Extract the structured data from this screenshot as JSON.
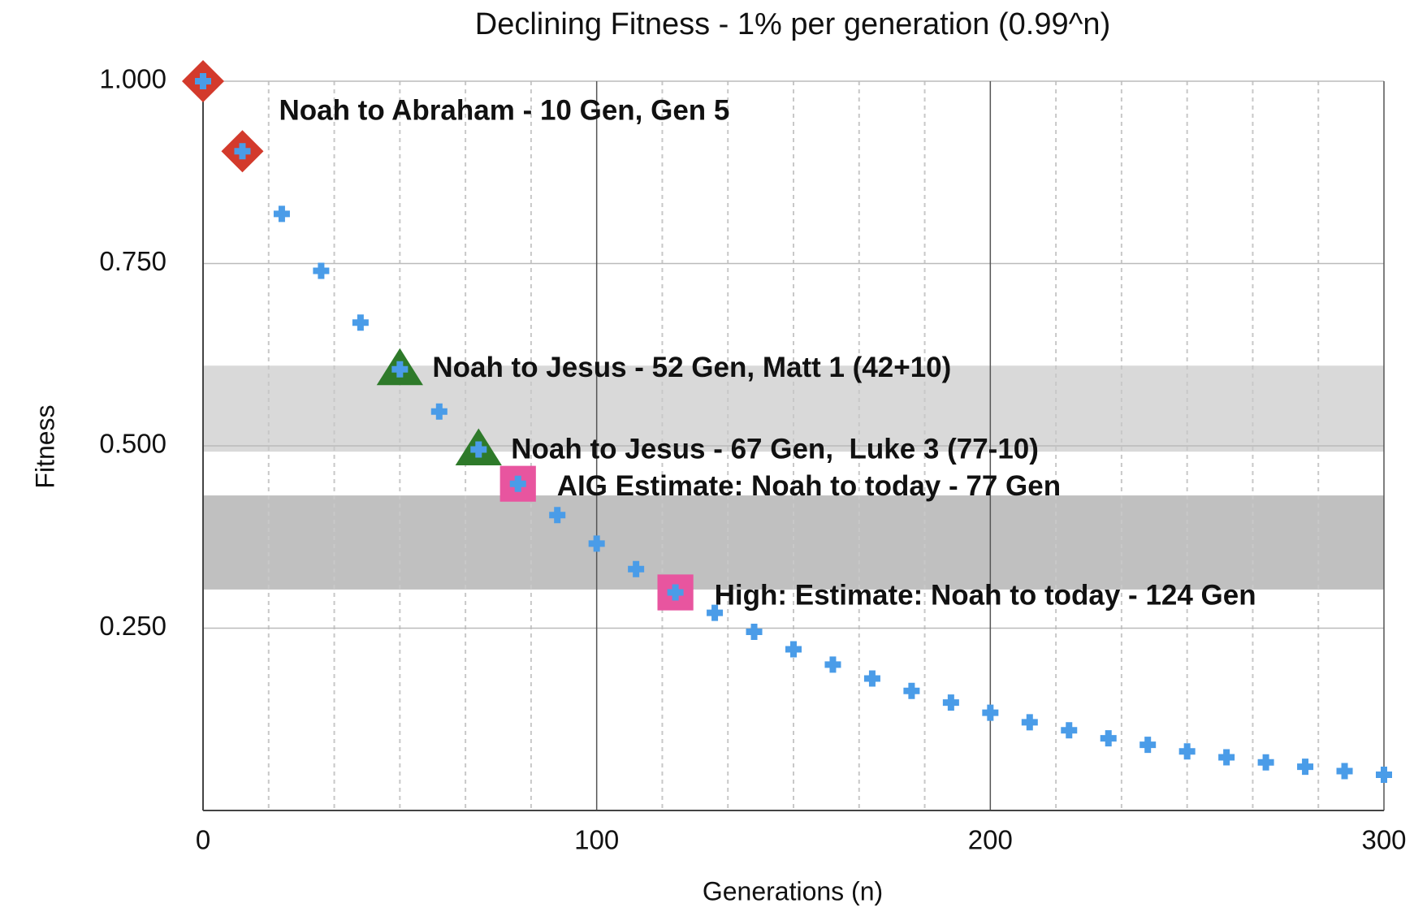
{
  "chart_data": {
    "type": "scatter",
    "title": "Declining Fitness - 1% per generation (0.99^n)",
    "xlabel": "Generations (n)",
    "ylabel": "Fitness",
    "x": [
      0,
      10,
      20,
      30,
      40,
      50,
      60,
      70,
      80,
      90,
      100,
      110,
      120,
      130,
      140,
      150,
      160,
      170,
      180,
      190,
      200,
      210,
      220,
      230,
      240,
      250,
      260,
      270,
      280,
      290,
      300
    ],
    "values": [
      1.0,
      0.904,
      0.818,
      0.74,
      0.669,
      0.605,
      0.547,
      0.495,
      0.448,
      0.405,
      0.366,
      0.331,
      0.299,
      0.271,
      0.245,
      0.221,
      0.2,
      0.181,
      0.164,
      0.148,
      0.134,
      0.121,
      0.11,
      0.099,
      0.09,
      0.081,
      0.073,
      0.066,
      0.06,
      0.054,
      0.049
    ],
    "color": "#4a9ce8",
    "xlim": [
      0,
      300
    ],
    "ylim": [
      0,
      1
    ],
    "xticks": [
      0,
      100,
      200,
      300
    ],
    "yticks": [
      {
        "value": 0.25,
        "label": "0.250"
      },
      {
        "value": 0.5,
        "label": "0.500"
      },
      {
        "value": 0.75,
        "label": "0.750"
      },
      {
        "value": 1,
        "label": "1.000"
      }
    ],
    "grid": true,
    "bands": [
      {
        "ylim": [
          0.492,
          0.61
        ],
        "color": "#d9d9d9"
      },
      {
        "ylim": [
          0.303,
          0.432
        ],
        "color": "#c0c0c0"
      }
    ],
    "highlights": [
      {
        "x": 0,
        "y": 1.0,
        "marker": "diamond",
        "color": "#d33a2c"
      },
      {
        "x": 10,
        "y": 0.904,
        "marker": "diamond",
        "color": "#d33a2c"
      },
      {
        "x": 50,
        "y": 0.605,
        "marker": "triangle",
        "color": "#2e7a2a"
      },
      {
        "x": 70,
        "y": 0.495,
        "marker": "triangle",
        "color": "#2e7a2a"
      },
      {
        "x": 80,
        "y": 0.448,
        "marker": "square",
        "color": "#e8559f"
      },
      {
        "x": 120,
        "y": 0.299,
        "marker": "square",
        "color": "#e8559f"
      }
    ],
    "annotations": [
      {
        "text": "Noah to Abraham - 10 Gen, Gen 5",
        "color": "#d33a2c"
      },
      {
        "text": "Noah to Jesus - 52 Gen, Matt 1 (42+10)",
        "color": "#2e7a2a"
      },
      {
        "text": "Noah to Jesus - 67 Gen,  Luke 3 (77-10)",
        "color": "#2e7a2a"
      },
      {
        "text": "AIG Estimate: Noah to today - 77 Gen",
        "color": "#e8559f"
      },
      {
        "text": "High: Estimate: Noah to today - 124 Gen",
        "color": "#e8559f"
      }
    ]
  }
}
